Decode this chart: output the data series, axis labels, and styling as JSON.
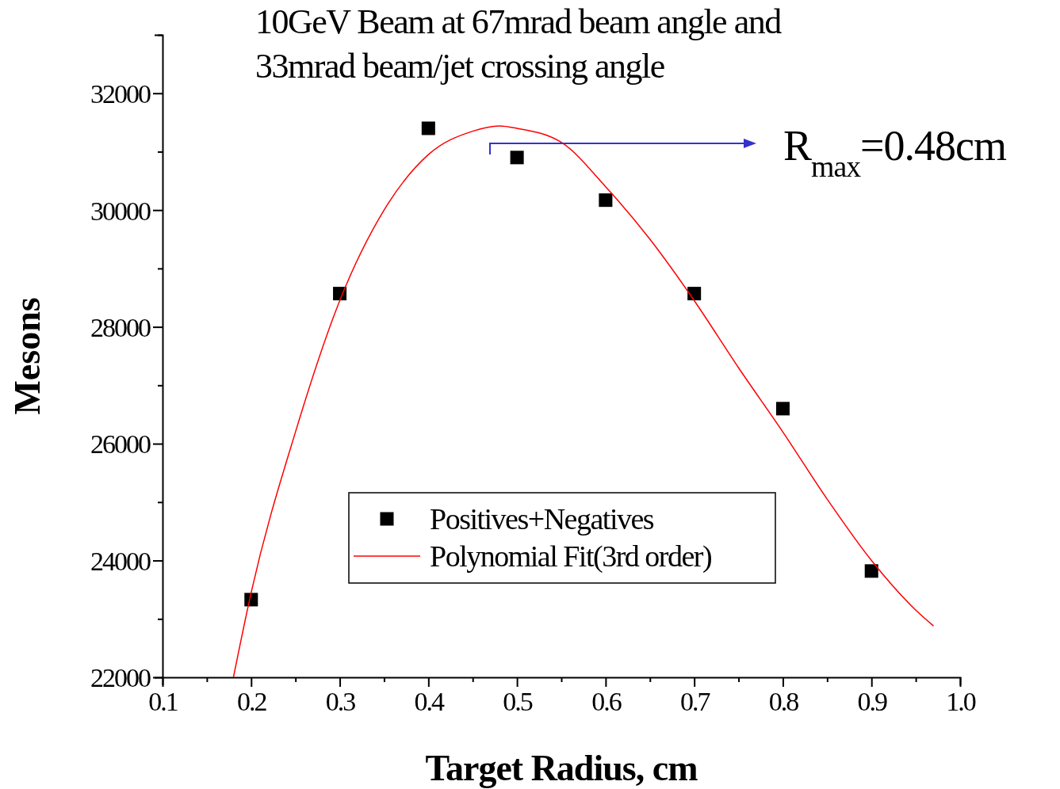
{
  "chart_data": {
    "type": "scatter",
    "title": "10GeV Beam at 67mrad beam angle and\n33mrad beam/jet crossing angle",
    "xlabel": "Target Radius, cm",
    "ylabel": "Mesons",
    "x": [
      0.2,
      0.3,
      0.4,
      0.5,
      0.6,
      0.7,
      0.8,
      0.9
    ],
    "series": [
      {
        "name": "Positives+Negatives",
        "type": "scatter",
        "color": "#000000",
        "marker": "square",
        "values": [
          23330,
          28570,
          31400,
          30900,
          30170,
          28570,
          26600,
          23820
        ]
      },
      {
        "name": "Polynomial Fit(3rd order)",
        "type": "line",
        "color": "#ff0000",
        "marker": "none",
        "line_style": "solid",
        "x": [
          0.18,
          0.2,
          0.25,
          0.3,
          0.35,
          0.4,
          0.45,
          0.48,
          0.5,
          0.55,
          0.6,
          0.65,
          0.7,
          0.75,
          0.8,
          0.85,
          0.9,
          0.95,
          0.97
        ],
        "values": [
          22000,
          23450,
          26200,
          28450,
          30000,
          30950,
          31350,
          31440,
          31400,
          31160,
          30400,
          29500,
          28450,
          27300,
          26200,
          25050,
          24000,
          23150,
          22880
        ]
      }
    ],
    "xlim": [
      0.1,
      1.0
    ],
    "ylim": [
      22000,
      33000
    ],
    "xticks": [
      0.1,
      {
        "value": 0.15,
        "label": null
      },
      0.2,
      {
        "value": 0.25,
        "label": null
      },
      0.3,
      {
        "value": 0.35,
        "label": null
      },
      0.4,
      {
        "value": 0.45,
        "label": null
      },
      0.5,
      {
        "value": 0.55,
        "label": null
      },
      0.6,
      {
        "value": 0.65,
        "label": null
      },
      0.7,
      {
        "value": 0.75,
        "label": null
      },
      0.8,
      {
        "value": 0.85,
        "label": null
      },
      0.9,
      {
        "value": 0.95,
        "label": null
      },
      {
        "value": 1.0,
        "label": "1.0"
      }
    ],
    "yticks": [
      22000,
      {
        "value": 23000,
        "label": null
      },
      24000,
      {
        "value": 25000,
        "label": null
      },
      26000,
      {
        "value": 27000,
        "label": null
      },
      28000,
      {
        "value": 29000,
        "label": null
      },
      30000,
      {
        "value": 31000,
        "label": null
      },
      32000,
      {
        "value": 33000,
        "label": null
      }
    ],
    "annotations": [
      "R$_{max}$=0.48cm"
    ],
    "grid": false,
    "legend": "bottom"
  }
}
